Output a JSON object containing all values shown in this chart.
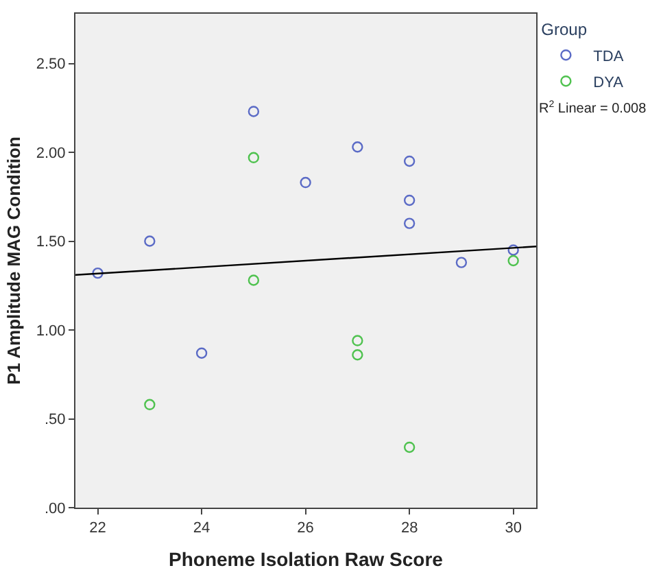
{
  "chart_data": {
    "type": "scatter",
    "xlabel": "Phoneme Isolation Raw Score",
    "ylabel": "P1 Amplitude MAG Condition",
    "legend_title": "Group",
    "legend": "top right",
    "marker": "circle",
    "grid": false,
    "xlim": [
      21.57,
      30.44
    ],
    "xticks": [
      22,
      24,
      26,
      28,
      30
    ],
    "ylim": [
      0,
      2.78
    ],
    "yticks": [
      {
        "value": 0,
        "label": ".00"
      },
      {
        "value": 0.5,
        "label": ".50"
      },
      {
        "value": 1,
        "label": "1.00"
      },
      {
        "value": 1.5,
        "label": "1.50"
      },
      {
        "value": 2,
        "label": "2.00"
      },
      {
        "value": 2.5,
        "label": "2.50"
      }
    ],
    "series": [
      {
        "name": "TDA",
        "color": "#5b6bc6",
        "x": [
          22,
          23,
          24,
          25,
          26,
          27,
          28,
          28,
          28,
          29,
          30
        ],
        "values": [
          1.32,
          1.5,
          0.87,
          2.23,
          1.83,
          2.03,
          1.95,
          1.73,
          1.6,
          1.38,
          1.45
        ]
      },
      {
        "name": "DYA",
        "color": "#4fc24f",
        "x": [
          23,
          25,
          25,
          27,
          27,
          28,
          30
        ],
        "values": [
          0.58,
          1.97,
          1.28,
          0.94,
          0.86,
          0.34,
          1.39
        ]
      },
      {
        "type": "line",
        "marker": "none",
        "color": "#000000",
        "x": [
          21.57,
          30.44
        ],
        "values": [
          1.31,
          1.47
        ]
      }
    ],
    "annotations": [
      "R$^{2}$ Linear = 0.008"
    ]
  }
}
